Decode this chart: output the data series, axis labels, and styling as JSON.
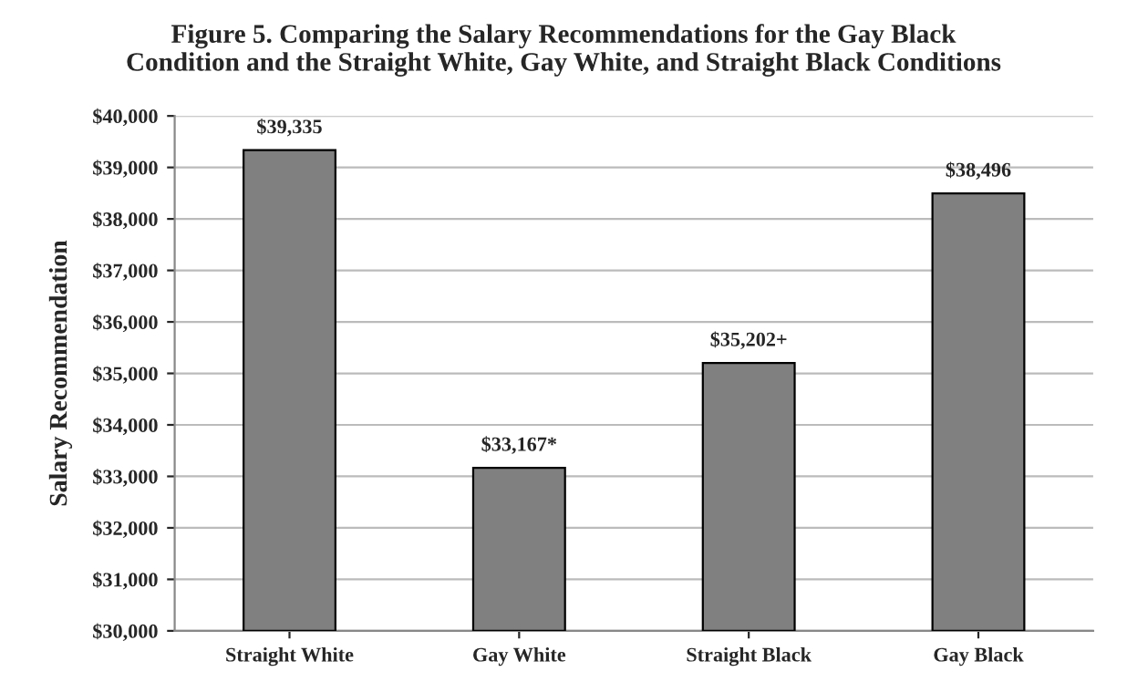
{
  "chart_data": {
    "type": "bar",
    "title": "Figure 5. Comparing the Salary Recommendations for the Gay Black\nCondition and the Straight White, Gay White, and Straight Black Conditions",
    "ylabel": "Salary Recommendation",
    "categories": [
      "Straight White",
      "Gay White",
      "Straight Black",
      "Gay Black"
    ],
    "values": [
      39335,
      33167,
      35202,
      38496
    ],
    "value_labels": [
      "$39,335",
      "$33,167*",
      "$35,202+",
      "$38,496"
    ],
    "color": "#808080",
    "ylim": [
      30000,
      40000
    ],
    "yticks": [
      {
        "value": 30000,
        "label": "$30,000"
      },
      {
        "value": 31000,
        "label": "$31,000"
      },
      {
        "value": 32000,
        "label": "$32,000"
      },
      {
        "value": 33000,
        "label": "$33,000"
      },
      {
        "value": 34000,
        "label": "$34,000"
      },
      {
        "value": 35000,
        "label": "$35,000"
      },
      {
        "value": 36000,
        "label": "$36,000"
      },
      {
        "value": 37000,
        "label": "$37,000"
      },
      {
        "value": 38000,
        "label": "$38,000"
      },
      {
        "value": 39000,
        "label": "$39,000"
      },
      {
        "value": 40000,
        "label": "$40,000"
      }
    ],
    "grid": "y"
  }
}
